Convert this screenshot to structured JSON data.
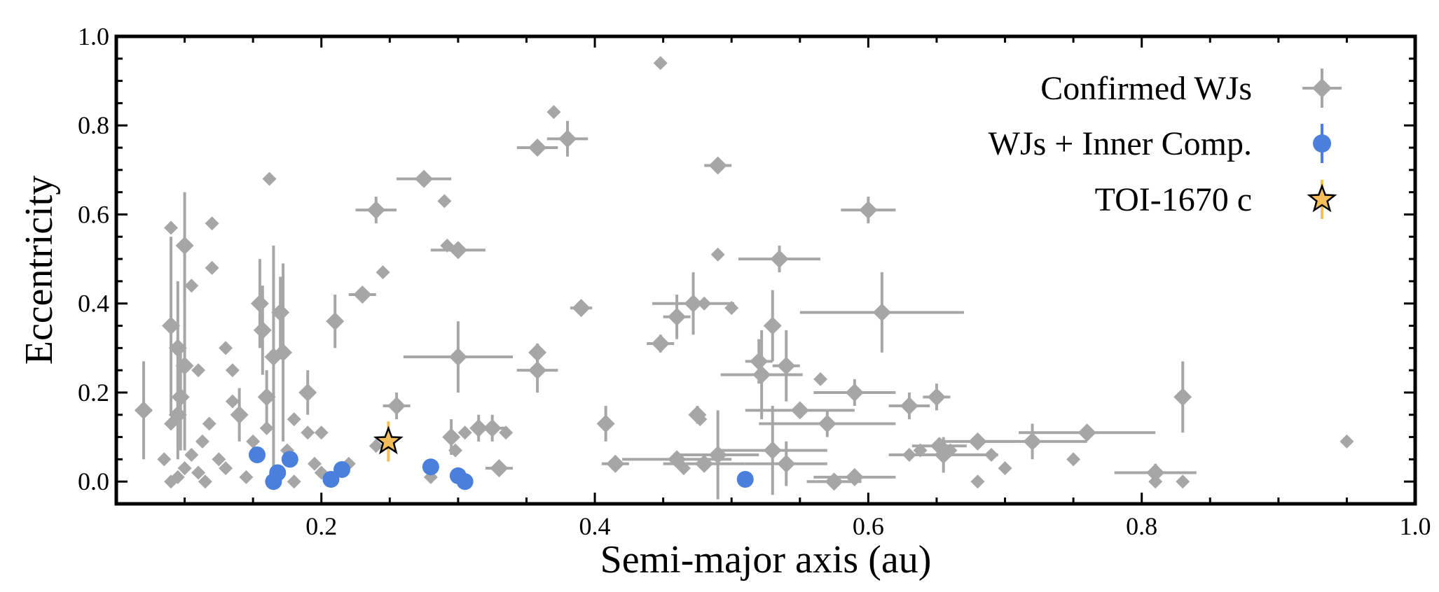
{
  "chart_data": {
    "type": "scatter",
    "title": "",
    "xlabel": "Semi-major axis (au)",
    "ylabel": "Eccentricity",
    "xlim": [
      0.05,
      1.0
    ],
    "ylim": [
      -0.05,
      1.0
    ],
    "x_ticks": [
      "0.2",
      "0.4",
      "0.6",
      "0.8",
      "1.0"
    ],
    "y_ticks": [
      "0.0",
      "0.2",
      "0.4",
      "0.6",
      "0.8",
      "1.0"
    ],
    "grid": false,
    "legend_position": "top-right",
    "series": [
      {
        "name": "Confirmed WJs",
        "marker": "diamond",
        "color": "#a6a6a6",
        "points": [
          {
            "x": 0.07,
            "y": 0.16,
            "ex": 0.006,
            "ey": 0.11
          },
          {
            "x": 0.09,
            "y": 0.57
          },
          {
            "x": 0.1,
            "y": 0.53,
            "ey": 0.12
          },
          {
            "x": 0.105,
            "y": 0.44
          },
          {
            "x": 0.12,
            "y": 0.58
          },
          {
            "x": 0.12,
            "y": 0.48
          },
          {
            "x": 0.09,
            "y": 0.35,
            "ey": 0.2
          },
          {
            "x": 0.095,
            "y": 0.3,
            "ey": 0.15
          },
          {
            "x": 0.1,
            "y": 0.26,
            "ey": 0.19
          },
          {
            "x": 0.11,
            "y": 0.25
          },
          {
            "x": 0.097,
            "y": 0.19,
            "ey": 0.12
          },
          {
            "x": 0.095,
            "y": 0.15,
            "ey": 0.1
          },
          {
            "x": 0.09,
            "y": 0.13
          },
          {
            "x": 0.085,
            "y": 0.05
          },
          {
            "x": 0.09,
            "y": 0.0
          },
          {
            "x": 0.095,
            "y": 0.01
          },
          {
            "x": 0.1,
            "y": 0.03
          },
          {
            "x": 0.105,
            "y": 0.06
          },
          {
            "x": 0.11,
            "y": 0.02
          },
          {
            "x": 0.115,
            "y": 0.0
          },
          {
            "x": 0.118,
            "y": 0.13
          },
          {
            "x": 0.113,
            "y": 0.09
          },
          {
            "x": 0.125,
            "y": 0.05
          },
          {
            "x": 0.13,
            "y": 0.03
          },
          {
            "x": 0.13,
            "y": 0.3
          },
          {
            "x": 0.135,
            "y": 0.25
          },
          {
            "x": 0.135,
            "y": 0.18
          },
          {
            "x": 0.14,
            "y": 0.15,
            "ey": 0.06
          },
          {
            "x": 0.145,
            "y": 0.01
          },
          {
            "x": 0.15,
            "y": 0.09
          },
          {
            "x": 0.155,
            "y": 0.4,
            "ey": 0.1
          },
          {
            "x": 0.157,
            "y": 0.34,
            "ey": 0.1
          },
          {
            "x": 0.162,
            "y": 0.68
          },
          {
            "x": 0.165,
            "y": 0.28,
            "ey": 0.25
          },
          {
            "x": 0.17,
            "y": 0.38,
            "ey": 0.08
          },
          {
            "x": 0.172,
            "y": 0.29,
            "ey": 0.2
          },
          {
            "x": 0.16,
            "y": 0.19,
            "ey": 0.06
          },
          {
            "x": 0.16,
            "y": 0.12
          },
          {
            "x": 0.175,
            "y": 0.07
          },
          {
            "x": 0.18,
            "y": 0.14
          },
          {
            "x": 0.19,
            "y": 0.2,
            "ey": 0.05
          },
          {
            "x": 0.19,
            "y": 0.11
          },
          {
            "x": 0.2,
            "y": 0.11
          },
          {
            "x": 0.18,
            "y": 0.0
          },
          {
            "x": 0.195,
            "y": 0.04
          },
          {
            "x": 0.2,
            "y": 0.02
          },
          {
            "x": 0.22,
            "y": 0.04
          },
          {
            "x": 0.21,
            "y": 0.36,
            "ey": 0.06
          },
          {
            "x": 0.23,
            "y": 0.42,
            "ex": 0.01
          },
          {
            "x": 0.24,
            "y": 0.61,
            "ex": 0.015,
            "ey": 0.03
          },
          {
            "x": 0.245,
            "y": 0.47
          },
          {
            "x": 0.24,
            "y": 0.08
          },
          {
            "x": 0.255,
            "y": 0.17,
            "ex": 0.01,
            "ey": 0.03
          },
          {
            "x": 0.275,
            "y": 0.68,
            "ex": 0.02
          },
          {
            "x": 0.28,
            "y": 0.01
          },
          {
            "x": 0.29,
            "y": 0.63
          },
          {
            "x": 0.292,
            "y": 0.53
          },
          {
            "x": 0.3,
            "y": 0.52,
            "ex": 0.02
          },
          {
            "x": 0.3,
            "y": 0.28,
            "ex": 0.04,
            "ey": 0.08
          },
          {
            "x": 0.295,
            "y": 0.1,
            "ey": 0.04
          },
          {
            "x": 0.298,
            "y": 0.07
          },
          {
            "x": 0.305,
            "y": 0.11
          },
          {
            "x": 0.315,
            "y": 0.12,
            "ey": 0.03
          },
          {
            "x": 0.325,
            "y": 0.12,
            "ex": 0.01,
            "ey": 0.03
          },
          {
            "x": 0.335,
            "y": 0.11
          },
          {
            "x": 0.33,
            "y": 0.03,
            "ex": 0.01
          },
          {
            "x": 0.358,
            "y": 0.75,
            "ex": 0.015
          },
          {
            "x": 0.37,
            "y": 0.83
          },
          {
            "x": 0.38,
            "y": 0.77,
            "ex": 0.015,
            "ey": 0.04
          },
          {
            "x": 0.358,
            "y": 0.29,
            "ey": 0.02
          },
          {
            "x": 0.358,
            "y": 0.25,
            "ex": 0.015,
            "ey": 0.05
          },
          {
            "x": 0.39,
            "y": 0.39,
            "ex": 0.008
          },
          {
            "x": 0.408,
            "y": 0.13,
            "ey": 0.04
          },
          {
            "x": 0.415,
            "y": 0.04,
            "ex": 0.01
          },
          {
            "x": 0.448,
            "y": 0.94
          },
          {
            "x": 0.448,
            "y": 0.31,
            "ex": 0.01,
            "ey": 0.02
          },
          {
            "x": 0.46,
            "y": 0.37,
            "ex": 0.01,
            "ey": 0.05
          },
          {
            "x": 0.472,
            "y": 0.4,
            "ex": 0.03,
            "ey": 0.07
          },
          {
            "x": 0.48,
            "y": 0.4
          },
          {
            "x": 0.49,
            "y": 0.71,
            "ex": 0.01
          },
          {
            "x": 0.49,
            "y": 0.51
          },
          {
            "x": 0.5,
            "y": 0.39
          },
          {
            "x": 0.475,
            "y": 0.15,
            "ey": 0.02
          },
          {
            "x": 0.477,
            "y": 0.14
          },
          {
            "x": 0.46,
            "y": 0.05,
            "ex": 0.04
          },
          {
            "x": 0.465,
            "y": 0.03
          },
          {
            "x": 0.48,
            "y": 0.04,
            "ex": 0.03
          },
          {
            "x": 0.49,
            "y": 0.06,
            "ex": 0.03,
            "ey": 0.1
          },
          {
            "x": 0.52,
            "y": 0.27,
            "ex": 0.01,
            "ey": 0.05
          },
          {
            "x": 0.522,
            "y": 0.24,
            "ex": 0.03,
            "ey": 0.1
          },
          {
            "x": 0.53,
            "y": 0.35,
            "ey": 0.08
          },
          {
            "x": 0.535,
            "y": 0.5,
            "ex": 0.03,
            "ey": 0.03
          },
          {
            "x": 0.54,
            "y": 0.26,
            "ex": 0.01,
            "ey": 0.08
          },
          {
            "x": 0.53,
            "y": 0.07,
            "ex": 0.04,
            "ey": 0.1
          },
          {
            "x": 0.54,
            "y": 0.04,
            "ex": 0.03,
            "ey": 0.05
          },
          {
            "x": 0.55,
            "y": 0.16,
            "ex": 0.04
          },
          {
            "x": 0.565,
            "y": 0.23
          },
          {
            "x": 0.57,
            "y": 0.13,
            "ex": 0.05,
            "ey": 0.03
          },
          {
            "x": 0.575,
            "y": 0.0,
            "ex": 0.02
          },
          {
            "x": 0.59,
            "y": 0.2,
            "ex": 0.03,
            "ey": 0.03
          },
          {
            "x": 0.59,
            "y": 0.01,
            "ex": 0.03
          },
          {
            "x": 0.6,
            "y": 0.61,
            "ex": 0.02,
            "ey": 0.03
          },
          {
            "x": 0.61,
            "y": 0.38,
            "ex": 0.06,
            "ey": 0.09
          },
          {
            "x": 0.63,
            "y": 0.17,
            "ex": 0.015,
            "ey": 0.03
          },
          {
            "x": 0.63,
            "y": 0.06
          },
          {
            "x": 0.638,
            "y": 0.07
          },
          {
            "x": 0.65,
            "y": 0.19,
            "ex": 0.01,
            "ey": 0.03
          },
          {
            "x": 0.652,
            "y": 0.08,
            "ex": 0.02
          },
          {
            "x": 0.655,
            "y": 0.06,
            "ex": 0.04,
            "ey": 0.04
          },
          {
            "x": 0.66,
            "y": 0.07
          },
          {
            "x": 0.68,
            "y": 0.09,
            "ex": 0.03
          },
          {
            "x": 0.68,
            "y": 0.0
          },
          {
            "x": 0.69,
            "y": 0.06
          },
          {
            "x": 0.7,
            "y": 0.03
          },
          {
            "x": 0.72,
            "y": 0.09,
            "ex": 0.04,
            "ey": 0.04
          },
          {
            "x": 0.75,
            "y": 0.05
          },
          {
            "x": 0.76,
            "y": 0.11,
            "ex": 0.05
          },
          {
            "x": 0.81,
            "y": 0.02,
            "ex": 0.03,
            "ey": 0.02
          },
          {
            "x": 0.81,
            "y": 0.0
          },
          {
            "x": 0.83,
            "y": 0.19,
            "ey": 0.08
          },
          {
            "x": 0.83,
            "y": 0.0
          },
          {
            "x": 0.95,
            "y": 0.09
          }
        ]
      },
      {
        "name": "WJs + Inner Comp.",
        "marker": "circle",
        "color": "#4a7fdd",
        "points": [
          {
            "x": 0.153,
            "y": 0.06
          },
          {
            "x": 0.165,
            "y": 0.0
          },
          {
            "x": 0.168,
            "y": 0.02
          },
          {
            "x": 0.177,
            "y": 0.05
          },
          {
            "x": 0.207,
            "y": 0.005
          },
          {
            "x": 0.215,
            "y": 0.027
          },
          {
            "x": 0.28,
            "y": 0.033
          },
          {
            "x": 0.3,
            "y": 0.013
          },
          {
            "x": 0.305,
            "y": 0.0
          },
          {
            "x": 0.51,
            "y": 0.005
          }
        ]
      },
      {
        "name": "TOI-1670 c",
        "marker": "star",
        "color": "#f6be5b",
        "points": [
          {
            "x": 0.249,
            "y": 0.09,
            "ey": 0.045
          }
        ]
      }
    ]
  }
}
